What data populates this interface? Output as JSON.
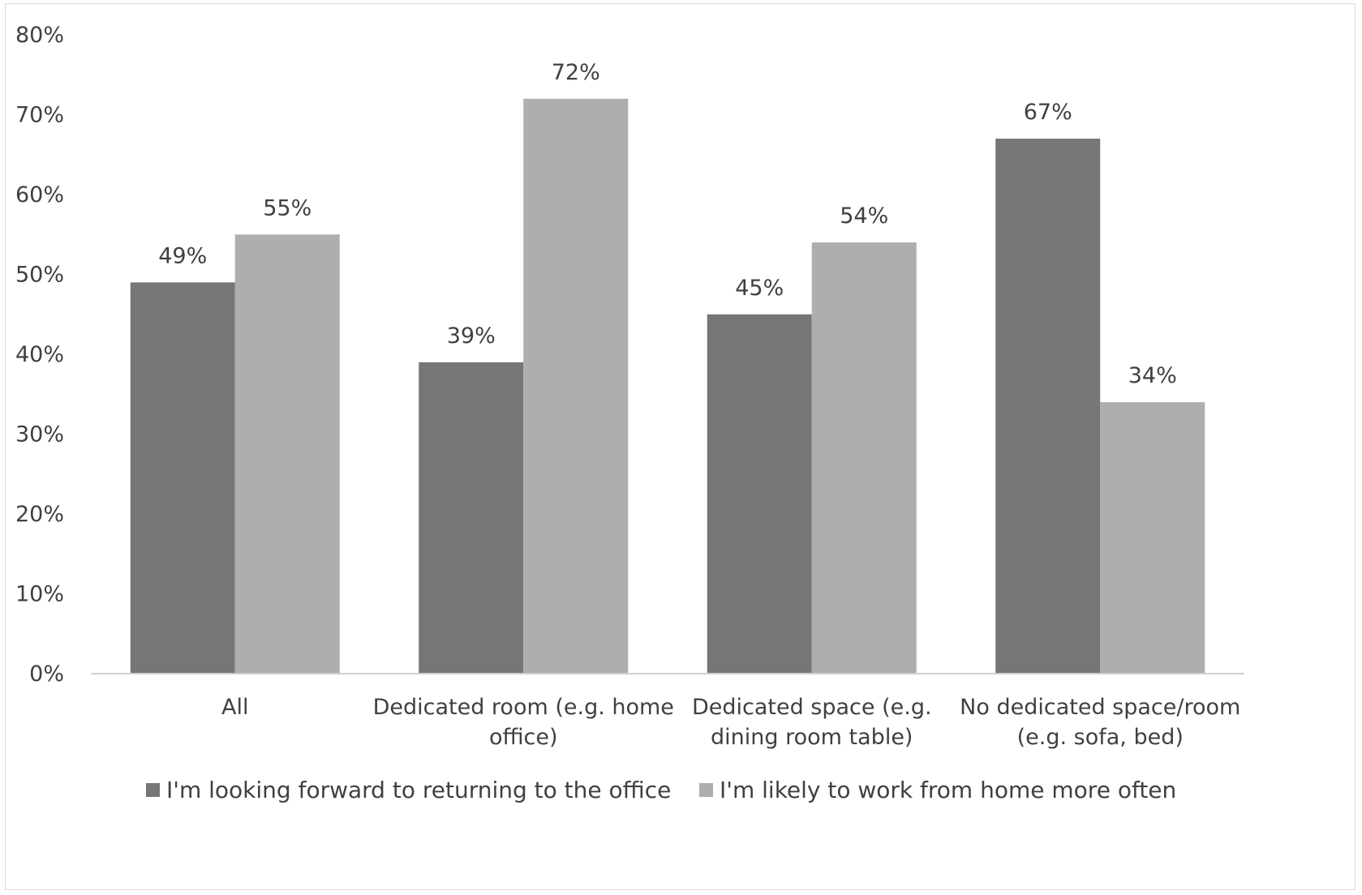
{
  "chart_data": {
    "type": "bar",
    "categories": [
      [
        "All"
      ],
      [
        "Dedicated room (e.g. home",
        "office)"
      ],
      [
        "Dedicated space (e.g.",
        "dining room table)"
      ],
      [
        "No dedicated space/room",
        "(e.g. sofa, bed)"
      ]
    ],
    "series": [
      {
        "name": "I'm looking forward to returning to the office",
        "color": "#767676",
        "values": [
          49,
          39,
          45,
          67
        ],
        "labels": [
          "49%",
          "39%",
          "45%",
          "67%"
        ]
      },
      {
        "name": "I'm likely to work from home more often",
        "color": "#aeaeb1",
        "values": [
          55,
          72,
          54,
          34
        ],
        "labels": [
          "55%",
          "72%",
          "54%",
          "34%"
        ]
      }
    ],
    "y_ticks": [
      "0%",
      "10%",
      "20%",
      "30%",
      "40%",
      "50%",
      "60%",
      "70%",
      "80%"
    ],
    "ylim": [
      0,
      80
    ],
    "grid": false,
    "legend_position": "bottom",
    "title": "",
    "xlabel": "",
    "ylabel": ""
  }
}
